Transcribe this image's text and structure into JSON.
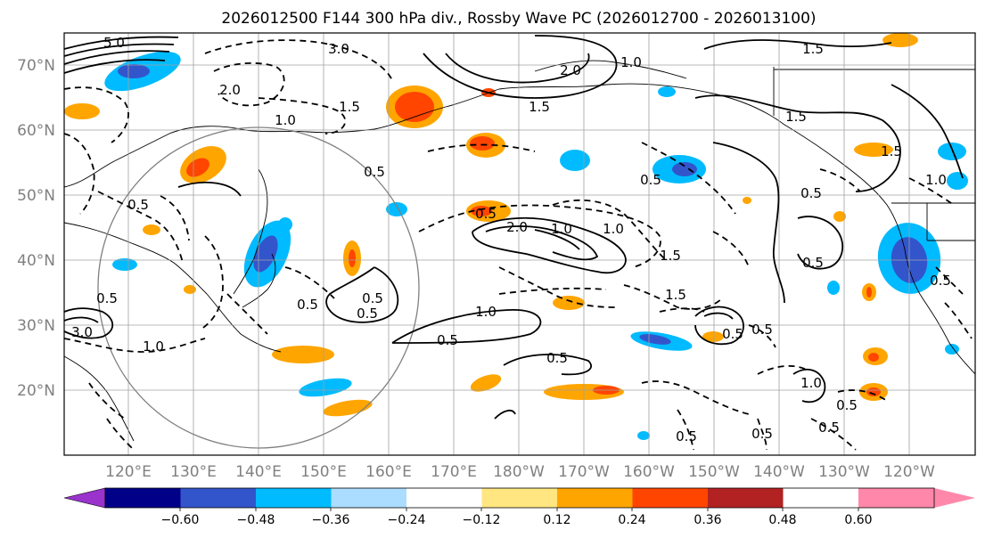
{
  "title": "2026012500 F144 300 hPa div., Rossby Wave PC (2026012700 - 2026013100)",
  "map": {
    "lon_labels": [
      "120°E",
      "130°E",
      "140°E",
      "150°E",
      "160°E",
      "170°E",
      "180°W",
      "170°W",
      "160°W",
      "150°W",
      "140°W",
      "130°W",
      "120°W"
    ],
    "lat_labels": [
      "70°N",
      "60°N",
      "50°N",
      "40°N",
      "30°N",
      "20°N"
    ],
    "lon_range_deg_east": [
      110,
      250
    ],
    "lat_range_deg": [
      10,
      75
    ],
    "contour_labels_solid": [
      "5.0",
      "3.0",
      "2.0",
      "1.5",
      "1.5",
      "1.5",
      "1.5",
      "1.0",
      "0.5",
      "0.5",
      "0.5",
      "2.0",
      "1.0",
      "0.5",
      "1.0",
      "0.5",
      "0.5",
      "0.5",
      "1.0",
      "0.5",
      "3.0",
      "0.5"
    ],
    "contour_labels_dashed": [
      "1.0",
      "2.0",
      "1.5",
      "0.5",
      "0.5",
      "0.5",
      "1.0",
      "1.5",
      "0.5",
      "1.0",
      "1.5",
      "0.5",
      "0.5",
      "0.5",
      "1.0",
      "0.5",
      "0.5",
      "0.5"
    ]
  },
  "colorbar": {
    "ticks": [
      "−0.60",
      "−0.48",
      "−0.36",
      "−0.24",
      "−0.12",
      "0.12",
      "0.24",
      "0.36",
      "0.48",
      "0.60"
    ],
    "colors": [
      "#9933cc",
      "#000088",
      "#3355cc",
      "#00bbff",
      "#aaddff",
      "#ffffff",
      "#ffe680",
      "#ffa500",
      "#ff4500",
      "#b22222",
      "#ff88aa"
    ]
  }
}
